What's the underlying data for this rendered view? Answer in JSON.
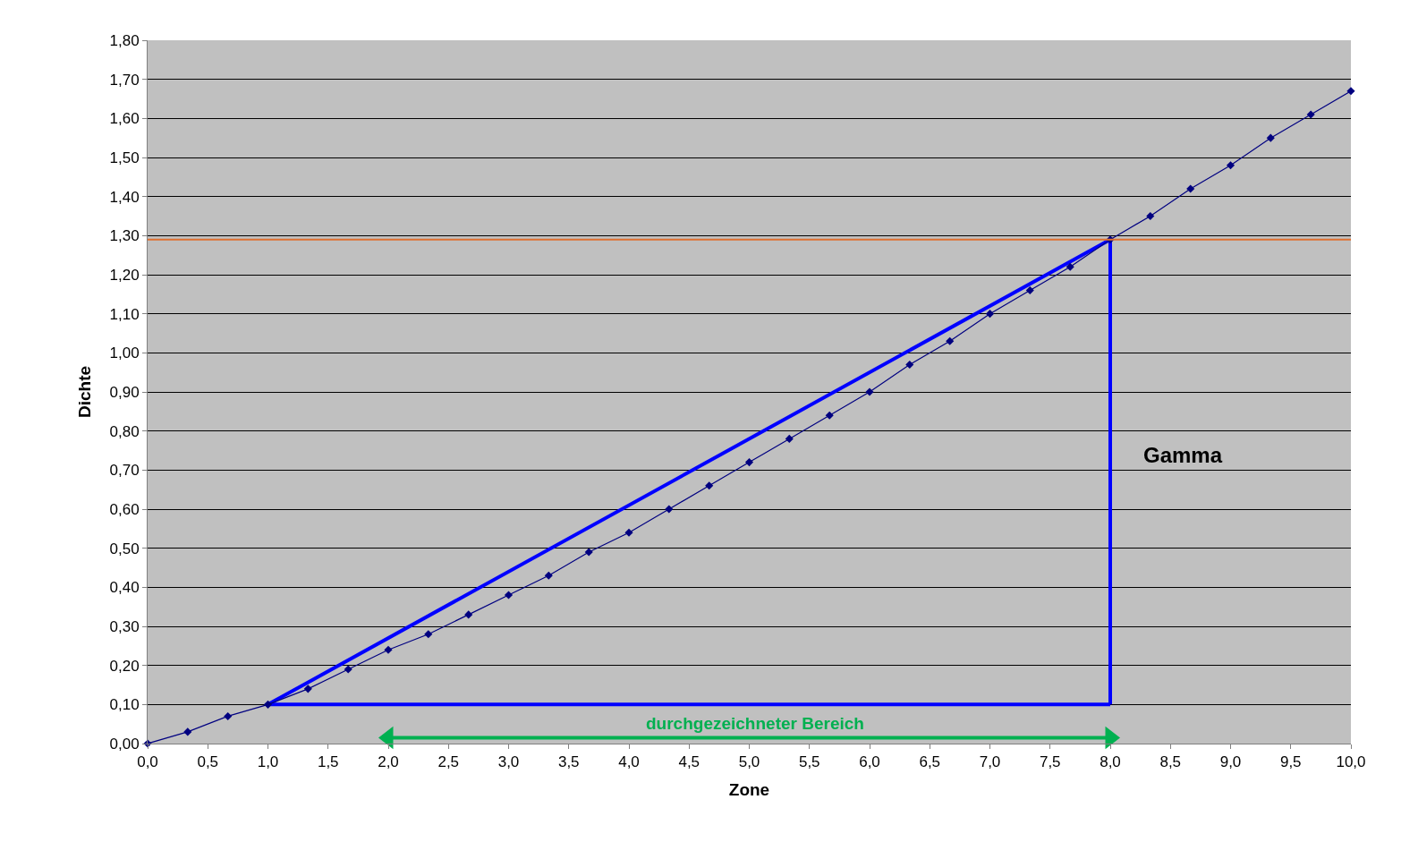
{
  "chart_data": {
    "type": "line",
    "xlabel": "Zone",
    "ylabel": "Dichte",
    "xlim": [
      0,
      10
    ],
    "ylim": [
      0,
      1.8
    ],
    "xticks": [
      {
        "value": 0,
        "label": "0,0"
      },
      {
        "value": 0.5,
        "label": "0,5"
      },
      {
        "value": 1,
        "label": "1,0"
      },
      {
        "value": 1.5,
        "label": "1,5"
      },
      {
        "value": 2,
        "label": "2,0"
      },
      {
        "value": 2.5,
        "label": "2,5"
      },
      {
        "value": 3,
        "label": "3,0"
      },
      {
        "value": 3.5,
        "label": "3,5"
      },
      {
        "value": 4,
        "label": "4,0"
      },
      {
        "value": 4.5,
        "label": "4,5"
      },
      {
        "value": 5,
        "label": "5,0"
      },
      {
        "value": 5.5,
        "label": "5,5"
      },
      {
        "value": 6,
        "label": "6,0"
      },
      {
        "value": 6.5,
        "label": "6,5"
      },
      {
        "value": 7,
        "label": "7,0"
      },
      {
        "value": 7.5,
        "label": "7,5"
      },
      {
        "value": 8,
        "label": "8,0"
      },
      {
        "value": 8.5,
        "label": "8,5"
      },
      {
        "value": 9,
        "label": "9,0"
      },
      {
        "value": 9.5,
        "label": "9,5"
      },
      {
        "value": 10,
        "label": "10,0"
      }
    ],
    "yticks": [
      {
        "value": 0,
        "label": "0,00"
      },
      {
        "value": 0.1,
        "label": "0,10"
      },
      {
        "value": 0.2,
        "label": "0,20"
      },
      {
        "value": 0.3,
        "label": "0,30"
      },
      {
        "value": 0.4,
        "label": "0,40"
      },
      {
        "value": 0.5,
        "label": "0,50"
      },
      {
        "value": 0.6,
        "label": "0,60"
      },
      {
        "value": 0.7,
        "label": "0,70"
      },
      {
        "value": 0.8,
        "label": "0,80"
      },
      {
        "value": 0.9,
        "label": "0,90"
      },
      {
        "value": 1.0,
        "label": "1,00"
      },
      {
        "value": 1.1,
        "label": "1,10"
      },
      {
        "value": 1.2,
        "label": "1,20"
      },
      {
        "value": 1.3,
        "label": "1,30"
      },
      {
        "value": 1.4,
        "label": "1,40"
      },
      {
        "value": 1.5,
        "label": "1,50"
      },
      {
        "value": 1.6,
        "label": "1,60"
      },
      {
        "value": 1.7,
        "label": "1,70"
      },
      {
        "value": 1.8,
        "label": "1,80"
      }
    ],
    "grid": "y",
    "series": [
      {
        "color": "#000080",
        "marker": "diamond",
        "x": [
          0,
          0.333,
          0.667,
          1,
          1.333,
          1.667,
          2,
          2.333,
          2.667,
          3,
          3.333,
          3.667,
          4,
          4.333,
          4.667,
          5,
          5.333,
          5.667,
          6,
          6.333,
          6.667,
          7,
          7.333,
          7.667,
          8,
          8.333,
          8.667,
          9,
          9.333,
          9.667,
          10
        ],
        "values": [
          0,
          0.03,
          0.07,
          0.1,
          0.14,
          0.19,
          0.24,
          0.28,
          0.33,
          0.38,
          0.43,
          0.49,
          0.54,
          0.6,
          0.66,
          0.72,
          0.78,
          0.84,
          0.9,
          0.97,
          1.03,
          1.1,
          1.16,
          1.22,
          1.29,
          1.35,
          1.42,
          1.48,
          1.55,
          1.61,
          1.67
        ]
      },
      {
        "color": "#0000ff",
        "marker": "none",
        "x": [
          1,
          8
        ],
        "values": [
          0.1,
          1.29
        ]
      },
      {
        "color": "#0000ff",
        "marker": "none",
        "x": [
          1,
          8
        ],
        "values": [
          0.1,
          0.1
        ]
      },
      {
        "color": "#0000ff",
        "marker": "none",
        "x": [
          8,
          8
        ],
        "values": [
          0.1,
          1.29
        ]
      },
      {
        "color": "#00b050",
        "marker": "triangle",
        "x": [
          2,
          8
        ],
        "values": [
          0.015,
          0.015
        ]
      }
    ],
    "ref_lines": [
      {
        "axis": "y",
        "value": 1.29,
        "color": "#e07030"
      }
    ],
    "annotations": [
      "Gamma",
      "durchgezeichneter Bereich"
    ]
  }
}
